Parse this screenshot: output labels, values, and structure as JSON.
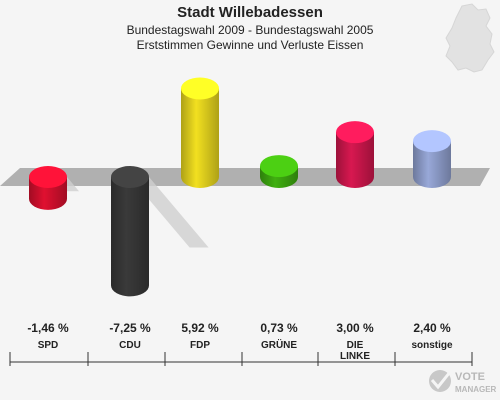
{
  "chart_data": {
    "type": "bar",
    "title": "Stadt Willebadessen",
    "subtitle": "Bundestagswahl 2009 - Bundestagswahl 2005",
    "subtitle2": "Erststimmen Gewinne und Verluste Eissen",
    "categories": [
      "SPD",
      "CDU",
      "FDP",
      "GRÜNE",
      "DIE LINKE",
      "sonstige"
    ],
    "values": [
      -1.46,
      -7.25,
      5.92,
      0.73,
      3.0,
      2.4
    ],
    "value_labels": [
      "-1,46 %",
      "-7,25 %",
      "5,92 %",
      "0,73 %",
      "3,00 %",
      "2,40 %"
    ],
    "colors": [
      "#e01030",
      "#3a3a3a",
      "#f2e020",
      "#40b010",
      "#d81850",
      "#98a8d8"
    ],
    "ylim": [
      -7.5,
      7.0
    ],
    "grid": false,
    "legend": "none"
  },
  "branding": {
    "logo_line1": "VOTE",
    "logo_line2": "MANAGER"
  }
}
